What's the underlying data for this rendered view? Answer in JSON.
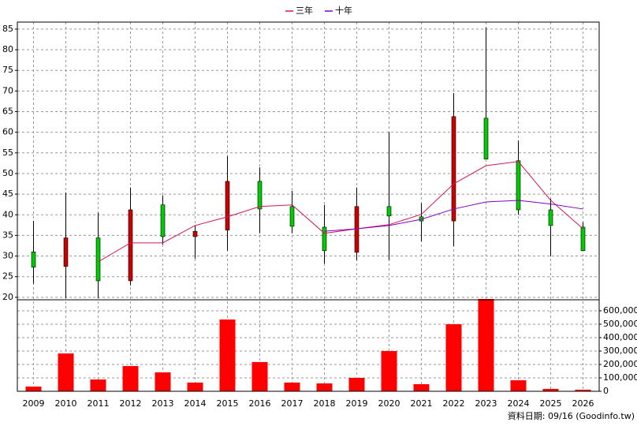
{
  "chart_data": {
    "type": "candlestick",
    "categories": [
      "2009",
      "2010",
      "2011",
      "2012",
      "2013",
      "2014",
      "2015",
      "2016",
      "2017",
      "2018",
      "2019",
      "2020",
      "2021",
      "2022",
      "2023",
      "2024",
      "2025",
      "2026"
    ],
    "open": [
      31,
      27.5,
      34.4,
      24,
      42.4,
      34.7,
      36.3,
      48.1,
      42,
      37,
      30.9,
      42,
      39.5,
      38.5,
      63.4,
      53.1,
      41.2,
      37
    ],
    "high": [
      38.5,
      45.4,
      40.5,
      46.6,
      44.7,
      37.4,
      54.2,
      51.5,
      45.8,
      42.4,
      46.6,
      60,
      42.8,
      69.5,
      85.4,
      58,
      43.9,
      38.2
    ],
    "low": [
      23.3,
      19.8,
      19.8,
      22.9,
      32.8,
      29.4,
      31.3,
      35.5,
      35.5,
      28.2,
      29,
      29,
      33.6,
      32.4,
      53.8,
      40,
      29.9,
      31.3
    ],
    "close": [
      27.3,
      34.4,
      24,
      41.2,
      34.7,
      36,
      48.1,
      41.4,
      37.2,
      31.3,
      42,
      39.7,
      38.5,
      63.8,
      53.5,
      41.2,
      37.4,
      31.3
    ],
    "up_color": "#cc0000",
    "down_color": "#00cc00",
    "series": [
      {
        "name": "三年",
        "color": "#d4145a",
        "values": [
          null,
          null,
          28.6,
          33.2,
          33.2,
          37.4,
          39.5,
          42,
          42.4,
          35.5,
          36.6,
          37.6,
          40.1,
          47.5,
          51.9,
          52.9,
          43.5,
          36.6
        ]
      },
      {
        "name": "十年",
        "color": "#8000c0",
        "values": [
          null,
          null,
          null,
          null,
          null,
          null,
          null,
          null,
          null,
          36,
          36.6,
          37.4,
          38.9,
          41.4,
          43.1,
          43.5,
          42.6,
          41.4
        ]
      }
    ],
    "volume": {
      "color": "#ff0000",
      "axis": "y2",
      "values": [
        35000,
        282000,
        88000,
        188000,
        141000,
        65000,
        535000,
        218000,
        65000,
        59000,
        100000,
        300000,
        53000,
        500000,
        688000,
        82000,
        18000,
        12000
      ]
    },
    "ylim": [
      19.4,
      86.7
    ],
    "yticks": [
      20,
      25,
      30,
      35,
      40,
      45,
      50,
      55,
      60,
      65,
      70,
      75,
      80,
      85
    ],
    "y2lim": [
      0,
      682000
    ],
    "y2ticks": [
      0,
      {
        "value": 100000,
        "label": "100,000"
      },
      {
        "value": 200000,
        "label": "200,000"
      },
      {
        "value": 300000,
        "label": "300,000"
      },
      {
        "value": 400000,
        "label": "400,000"
      },
      {
        "value": 500000,
        "label": "500,000"
      },
      {
        "value": 600000,
        "label": "600,000"
      }
    ],
    "grid": true,
    "footer": "資料日期: 09/16 (Goodinfo.tw)"
  }
}
